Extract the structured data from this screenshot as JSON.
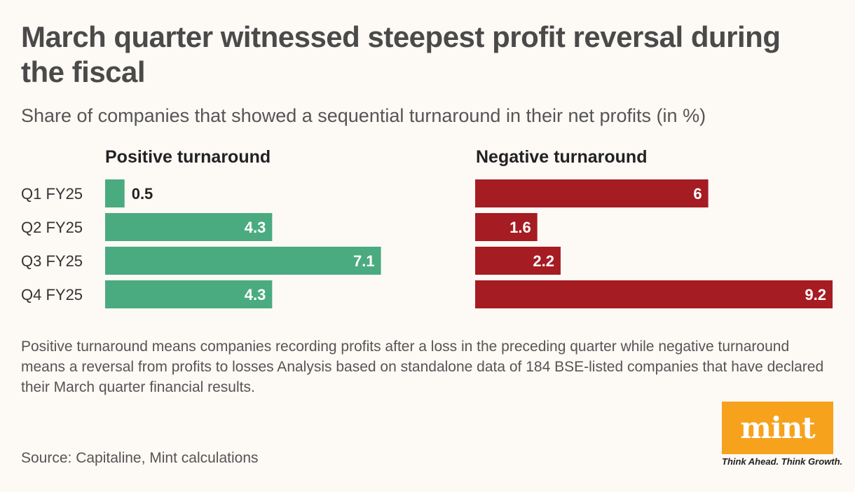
{
  "chart_data": {
    "type": "bar",
    "orientation": "horizontal",
    "title": "March quarter witnessed steepest profit reversal during the fiscal",
    "subtitle": "Share of companies that showed a sequential turnaround in their net profits (in %)",
    "categories": [
      "Q1 FY25",
      "Q2 FY25",
      "Q3 FY25",
      "Q4 FY25"
    ],
    "series": [
      {
        "name": "Positive turnaround",
        "color": "#4aab80",
        "values": [
          0.5,
          4.3,
          7.1,
          4.3
        ],
        "labels": [
          "0.5",
          "4.3",
          "7.1",
          "4.3"
        ]
      },
      {
        "name": "Negative turnaround",
        "color": "#a51c22",
        "values": [
          6,
          1.6,
          2.2,
          9.2
        ],
        "labels": [
          "6",
          "1.6",
          "2.2",
          "9.2"
        ]
      }
    ],
    "xlim": [
      0,
      9.2
    ]
  },
  "footnote": "Positive turnaround means companies recording profits after a loss in the preceding quarter while negative turnaround means a reversal from profits to losses Analysis based on standalone data of 184 BSE-listed companies that have declared their March quarter financial results.",
  "source": "Source: Capitaline, Mint calculations",
  "logo": {
    "text": "mint",
    "tagline": "Think Ahead. Think Growth.",
    "color": "#f6a21d"
  }
}
